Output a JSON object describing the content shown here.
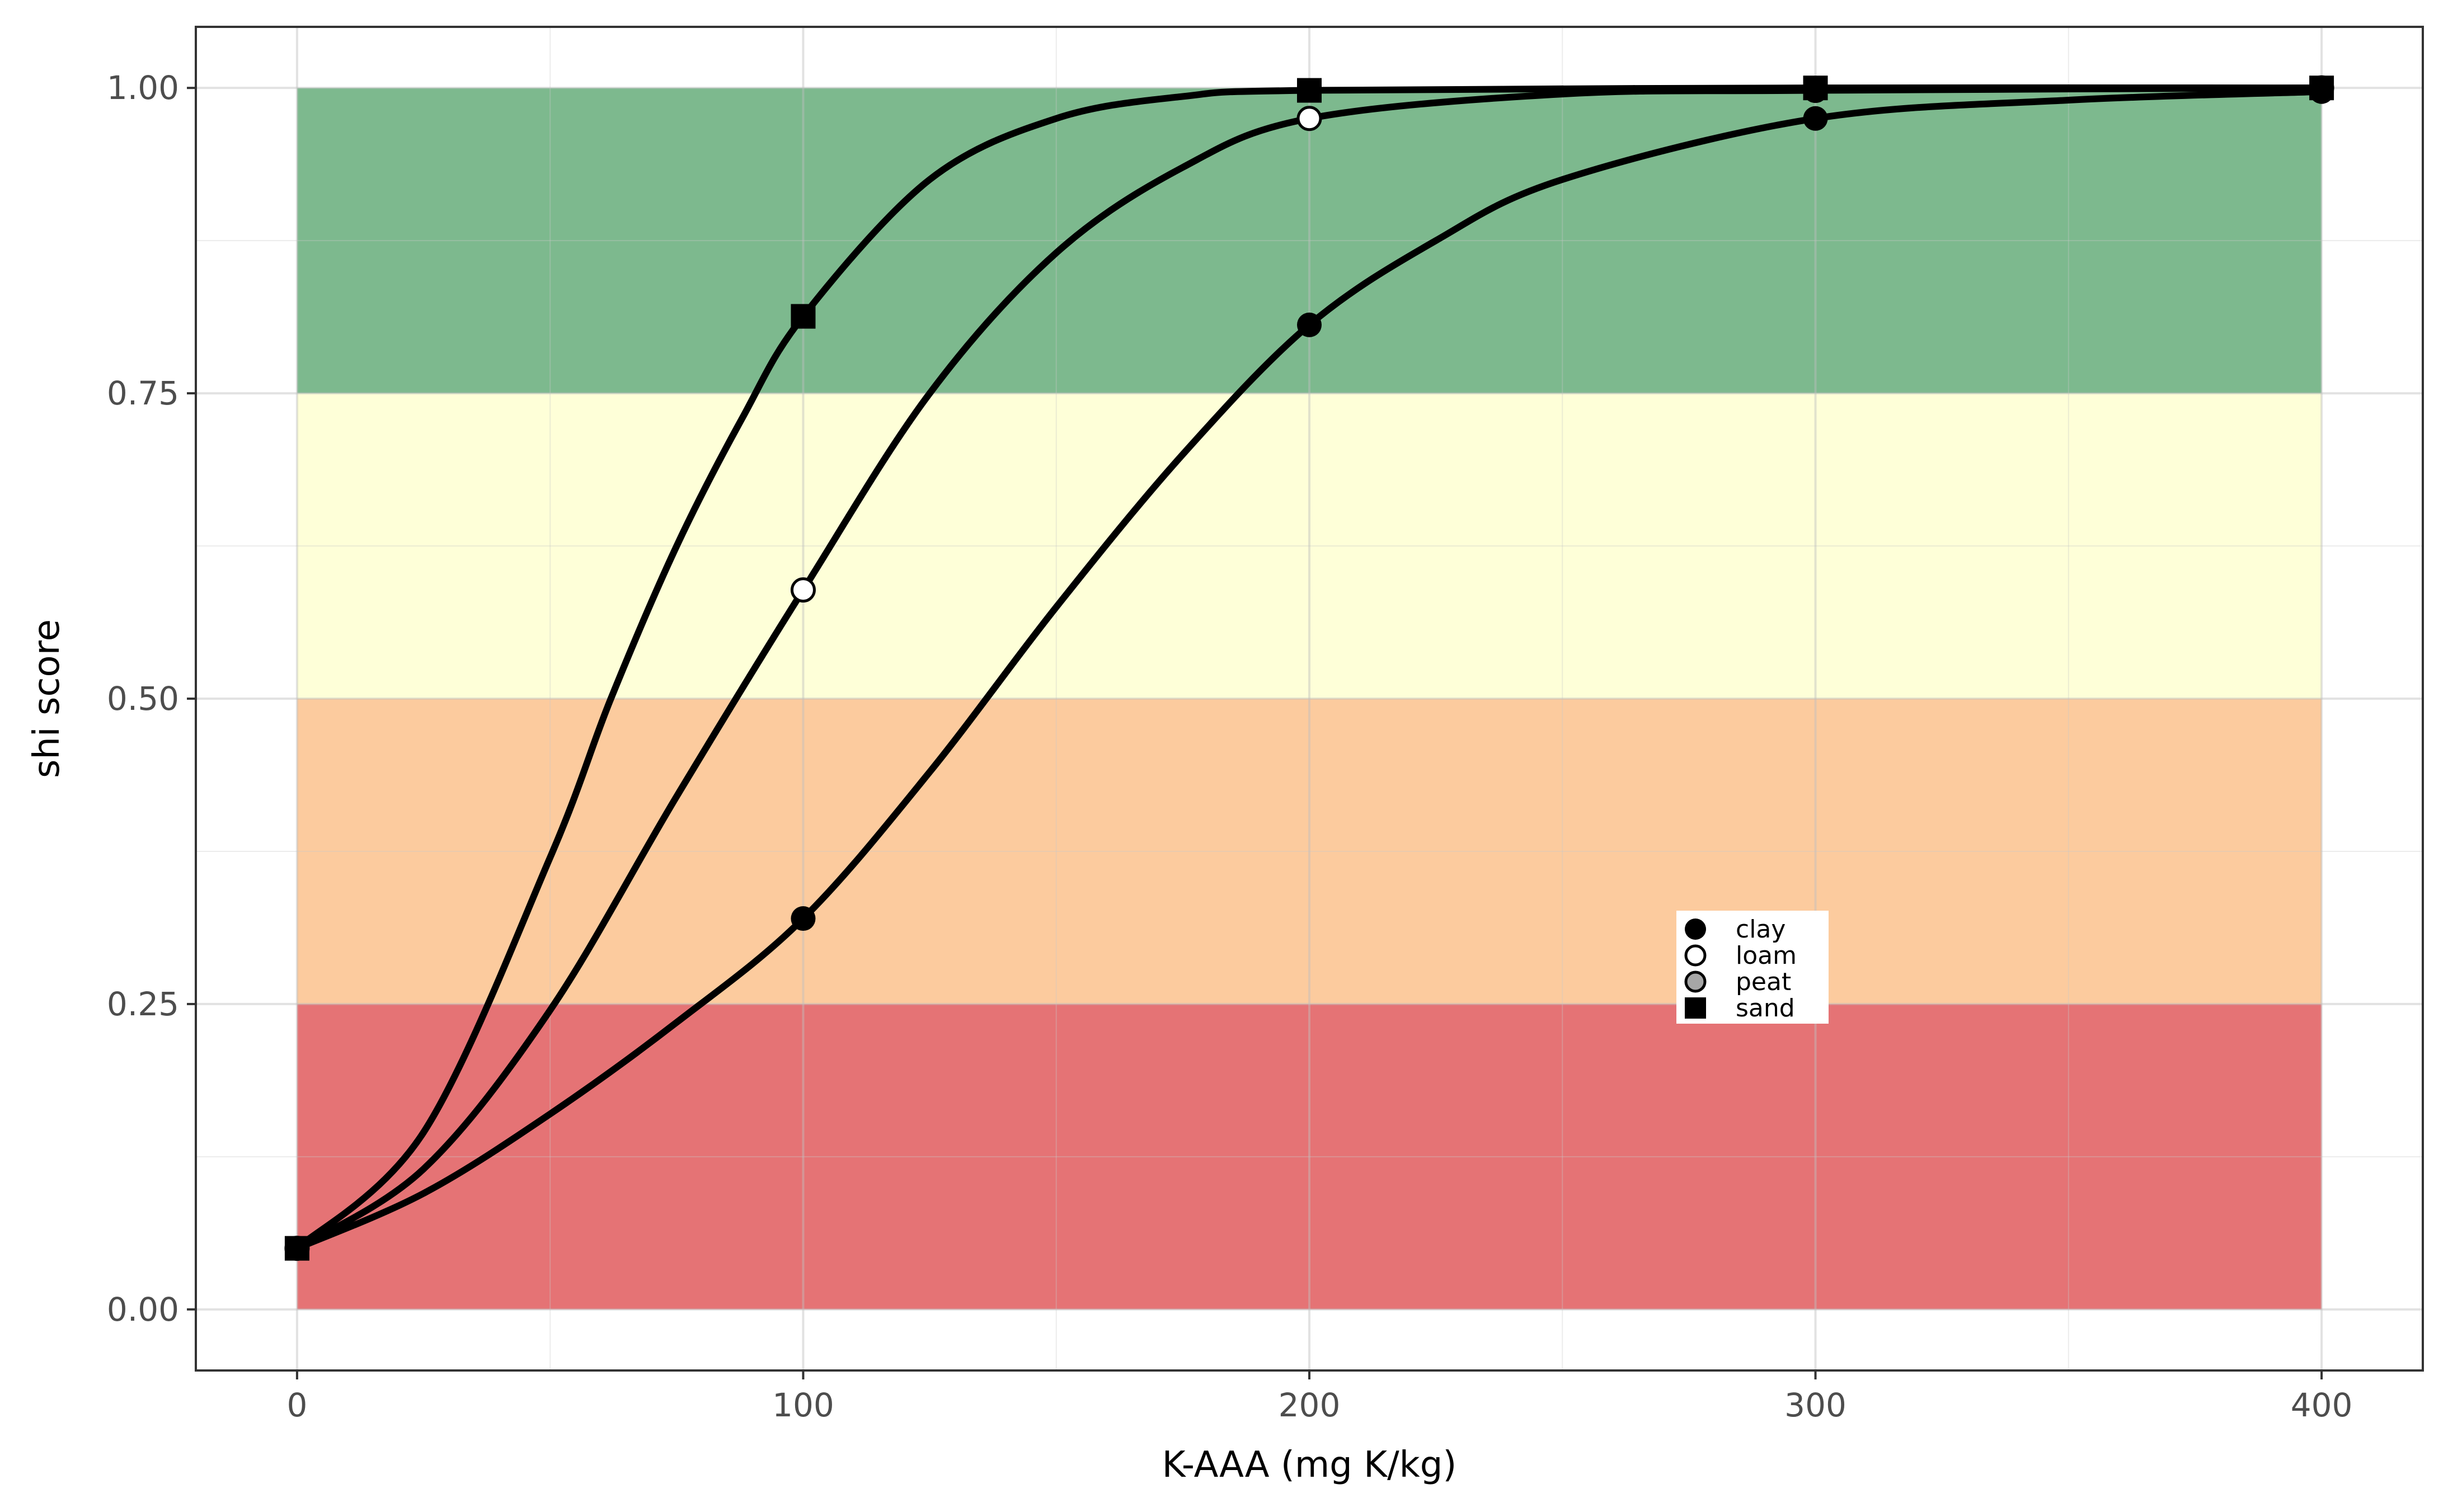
{
  "chart_data": {
    "type": "line",
    "xlabel": "K-AAA (mg K/kg)",
    "ylabel": "shi score",
    "xlim": [
      -20,
      420
    ],
    "ylim": [
      -0.05,
      1.05
    ],
    "x_ticks": [
      0,
      100,
      200,
      300,
      400
    ],
    "x_tick_labels": [
      "0",
      "100",
      "200",
      "300",
      "400"
    ],
    "y_ticks": [
      0,
      0.25,
      0.5,
      0.75,
      1.0
    ],
    "y_tick_labels": [
      "0.00",
      "0.25",
      "0.50",
      "0.75",
      "1.00"
    ],
    "grid": true,
    "bands": [
      {
        "ymin": 0.0,
        "ymax": 0.25,
        "xmin": 0,
        "xmax": 400,
        "color": "#e57375"
      },
      {
        "ymin": 0.25,
        "ymax": 0.5,
        "xmin": 0,
        "xmax": 400,
        "color": "#fccb9e"
      },
      {
        "ymin": 0.5,
        "ymax": 0.75,
        "xmin": 0,
        "xmax": 400,
        "color": "#feffd8"
      },
      {
        "ymin": 0.75,
        "ymax": 1.0,
        "xmin": 0,
        "xmax": 400,
        "color": "#7db98e"
      }
    ],
    "series": [
      {
        "name": "clay",
        "marker": "circle-filled",
        "points_x": [
          0,
          100,
          200,
          300,
          400
        ],
        "points_y": [
          0.05,
          0.32,
          0.806,
          0.975,
          0.997
        ],
        "curve_x": [
          0,
          25,
          50,
          75,
          100,
          125,
          150,
          175,
          200,
          225,
          250,
          300,
          350,
          400
        ],
        "curve_y": [
          0.05,
          0.095,
          0.16,
          0.235,
          0.32,
          0.44,
          0.575,
          0.7,
          0.806,
          0.875,
          0.925,
          0.975,
          0.99,
          0.997
        ]
      },
      {
        "name": "loam",
        "marker": "circle-open",
        "points_x": [
          0,
          100,
          200,
          300,
          400
        ],
        "points_y": [
          0.05,
          0.589,
          0.975,
          0.998,
          1.0
        ],
        "curve_x": [
          0,
          25,
          50,
          75,
          100,
          125,
          150,
          175,
          200,
          250,
          300,
          400
        ],
        "curve_y": [
          0.05,
          0.115,
          0.245,
          0.42,
          0.589,
          0.75,
          0.865,
          0.935,
          0.975,
          0.995,
          0.998,
          1.0
        ]
      },
      {
        "name": "peat",
        "marker": "circle-grey",
        "points_x": [],
        "points_y": [],
        "curve_x": [],
        "curve_y": []
      },
      {
        "name": "sand",
        "marker": "square-filled",
        "points_x": [
          0,
          100,
          200,
          300,
          400
        ],
        "points_y": [
          0.05,
          0.813,
          0.998,
          1.0,
          1.0
        ],
        "curve_x": [
          0,
          25,
          50,
          62,
          75,
          88,
          100,
          125,
          150,
          175,
          200,
          300,
          400
        ],
        "curve_y": [
          0.05,
          0.145,
          0.37,
          0.5,
          0.625,
          0.73,
          0.813,
          0.925,
          0.975,
          0.993,
          0.998,
          1.0,
          1.0
        ]
      }
    ],
    "legend": {
      "position": "inside-right",
      "entries": [
        "clay",
        "loam",
        "peat",
        "sand"
      ]
    }
  }
}
